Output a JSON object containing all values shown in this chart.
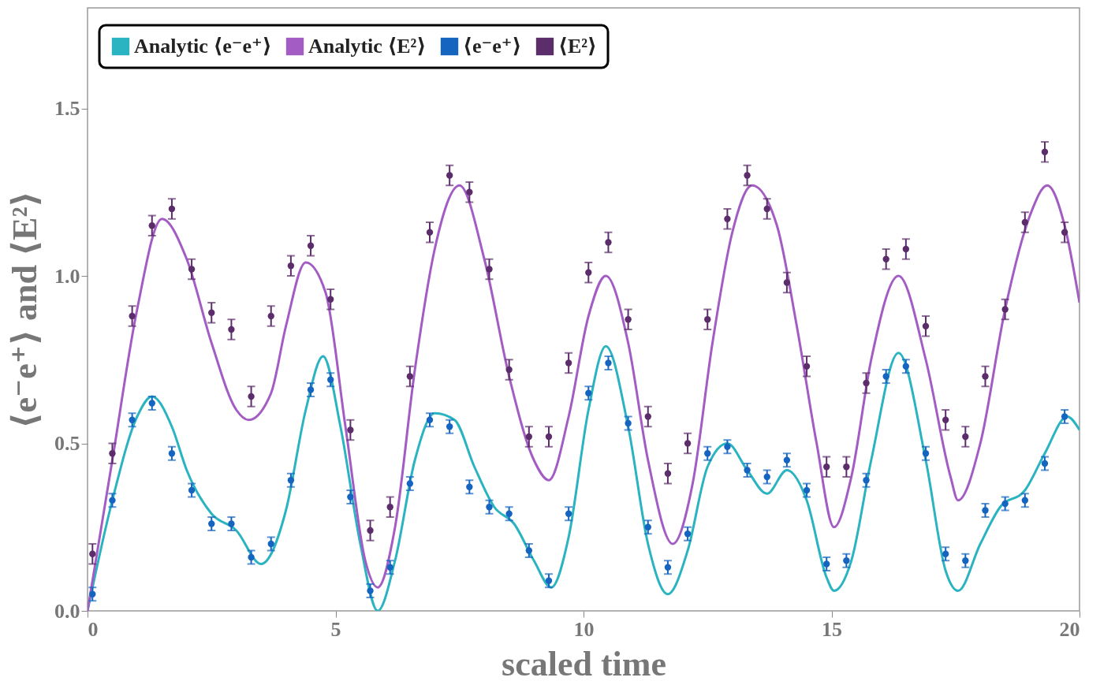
{
  "chart_data": {
    "type": "line",
    "xlabel": "scaled time",
    "ylabel": "⟨e⁻e⁺⟩ and ⟨E²⟩",
    "xlim": [
      0,
      20
    ],
    "ylim": [
      0,
      1.8
    ],
    "xticks": [
      0,
      5,
      10,
      15,
      20
    ],
    "yticks": [
      {
        "value": 0,
        "label": "0.0"
      },
      {
        "value": 0.5,
        "label": "0.5"
      },
      {
        "value": 1,
        "label": "1.0"
      },
      {
        "value": 1.5,
        "label": "1.5"
      }
    ],
    "grid": false,
    "legend": "top",
    "series": [
      {
        "name": "Analytic ⟨e⁻e⁺⟩",
        "color": "#2ab3c0",
        "x": [
          0,
          0.5,
          1.0,
          1.3,
          1.7,
          2.0,
          2.5,
          3.0,
          3.5,
          4.0,
          4.4,
          4.75,
          5.1,
          5.5,
          5.85,
          6.2,
          6.6,
          7.0,
          7.4,
          7.8,
          8.2,
          8.6,
          9.0,
          9.35,
          9.7,
          10.1,
          10.45,
          10.9,
          11.3,
          11.7,
          12.1,
          12.5,
          12.9,
          13.3,
          13.7,
          14.1,
          14.5,
          14.9,
          15.05,
          15.4,
          15.8,
          16.35,
          16.9,
          17.3,
          17.55,
          18.0,
          18.4,
          18.9,
          19.3,
          19.75,
          20
        ],
        "values": [
          0,
          0.33,
          0.58,
          0.64,
          0.55,
          0.42,
          0.29,
          0.24,
          0.14,
          0.3,
          0.6,
          0.76,
          0.55,
          0.2,
          0,
          0.15,
          0.45,
          0.59,
          0.57,
          0.43,
          0.31,
          0.26,
          0.15,
          0.07,
          0.22,
          0.6,
          0.79,
          0.55,
          0.2,
          0.05,
          0.18,
          0.43,
          0.5,
          0.42,
          0.35,
          0.42,
          0.33,
          0.1,
          0.06,
          0.15,
          0.45,
          0.77,
          0.45,
          0.12,
          0.06,
          0.2,
          0.31,
          0.36,
          0.47,
          0.58,
          0.54
        ]
      },
      {
        "name": "Analytic ⟨E²⟩",
        "color": "#a35cc4",
        "x": [
          0,
          0.5,
          1.0,
          1.5,
          2.0,
          2.5,
          3.0,
          3.25,
          3.7,
          4.0,
          4.4,
          4.8,
          5.2,
          5.6,
          5.85,
          6.2,
          6.6,
          7.0,
          7.5,
          8.0,
          8.5,
          9.0,
          9.3,
          9.7,
          10.1,
          10.45,
          10.9,
          11.3,
          11.8,
          12.2,
          12.6,
          13.0,
          13.4,
          13.9,
          14.3,
          14.7,
          15.05,
          15.4,
          15.8,
          16.35,
          16.9,
          17.4,
          17.55,
          18.0,
          18.5,
          19.0,
          19.35,
          19.7,
          20
        ],
        "values": [
          0,
          0.45,
          0.9,
          1.17,
          1.05,
          0.8,
          0.6,
          0.57,
          0.65,
          0.85,
          1.04,
          0.95,
          0.55,
          0.15,
          0.07,
          0.25,
          0.72,
          1.08,
          1.27,
          1.05,
          0.7,
          0.45,
          0.39,
          0.58,
          0.88,
          1.0,
          0.8,
          0.45,
          0.2,
          0.38,
          0.8,
          1.13,
          1.27,
          1.15,
          0.85,
          0.5,
          0.25,
          0.4,
          0.75,
          1.0,
          0.75,
          0.4,
          0.33,
          0.5,
          0.9,
          1.18,
          1.27,
          1.15,
          0.92
        ]
      },
      {
        "name": "⟨e⁻e⁺⟩",
        "type": "scatter",
        "marker": "circle",
        "color": "#1565c0",
        "x": [
          0.1,
          0.5,
          0.9,
          1.3,
          1.7,
          2.1,
          2.5,
          2.9,
          3.3,
          3.7,
          4.1,
          4.5,
          4.9,
          5.3,
          5.7,
          6.1,
          6.5,
          6.9,
          7.3,
          7.7,
          8.1,
          8.5,
          8.9,
          9.3,
          9.7,
          10.1,
          10.5,
          10.9,
          11.3,
          11.7,
          12.1,
          12.5,
          12.9,
          13.3,
          13.7,
          14.1,
          14.5,
          14.9,
          15.3,
          15.7,
          16.1,
          16.5,
          16.9,
          17.3,
          17.7,
          18.1,
          18.5,
          18.9,
          19.3,
          19.7
        ],
        "values": [
          0.05,
          0.33,
          0.57,
          0.62,
          0.47,
          0.36,
          0.26,
          0.26,
          0.16,
          0.2,
          0.39,
          0.66,
          0.69,
          0.34,
          0.06,
          0.13,
          0.38,
          0.57,
          0.55,
          0.37,
          0.31,
          0.29,
          0.18,
          0.09,
          0.29,
          0.65,
          0.74,
          0.56,
          0.25,
          0.13,
          0.23,
          0.47,
          0.49,
          0.42,
          0.4,
          0.45,
          0.36,
          0.14,
          0.15,
          0.39,
          0.7,
          0.73,
          0.47,
          0.17,
          0.15,
          0.3,
          0.32,
          0.33,
          0.44,
          0.58
        ],
        "errors": [
          0.02,
          0.02,
          0.02,
          0.02,
          0.02,
          0.02,
          0.02,
          0.02,
          0.02,
          0.02,
          0.02,
          0.02,
          0.02,
          0.02,
          0.02,
          0.02,
          0.02,
          0.02,
          0.02,
          0.02,
          0.02,
          0.02,
          0.02,
          0.02,
          0.02,
          0.02,
          0.02,
          0.02,
          0.02,
          0.02,
          0.02,
          0.02,
          0.02,
          0.02,
          0.02,
          0.02,
          0.02,
          0.02,
          0.02,
          0.02,
          0.02,
          0.02,
          0.02,
          0.02,
          0.02,
          0.02,
          0.02,
          0.02,
          0.02,
          0.02
        ]
      },
      {
        "name": "⟨E²⟩",
        "type": "scatter",
        "marker": "circle",
        "color": "#5c2d6b",
        "x": [
          0.1,
          0.5,
          0.9,
          1.3,
          1.7,
          2.1,
          2.5,
          2.9,
          3.3,
          3.7,
          4.1,
          4.5,
          4.9,
          5.3,
          5.7,
          6.1,
          6.5,
          6.9,
          7.3,
          7.7,
          8.1,
          8.5,
          8.9,
          9.3,
          9.7,
          10.1,
          10.5,
          10.9,
          11.3,
          11.7,
          12.1,
          12.5,
          12.9,
          13.3,
          13.7,
          14.1,
          14.5,
          14.9,
          15.3,
          15.7,
          16.1,
          16.5,
          16.9,
          17.3,
          17.7,
          18.1,
          18.5,
          18.9,
          19.3,
          19.7
        ],
        "values": [
          0.17,
          0.47,
          0.88,
          1.15,
          1.2,
          1.02,
          0.89,
          0.84,
          0.64,
          0.88,
          1.03,
          1.09,
          0.93,
          0.54,
          0.24,
          0.31,
          0.7,
          1.13,
          1.3,
          1.25,
          1.02,
          0.72,
          0.52,
          0.52,
          0.74,
          1.01,
          1.1,
          0.87,
          0.58,
          0.41,
          0.5,
          0.87,
          1.17,
          1.3,
          1.2,
          0.98,
          0.73,
          0.43,
          0.43,
          0.68,
          1.05,
          1.08,
          0.85,
          0.57,
          0.52,
          0.7,
          0.9,
          1.16,
          1.37,
          1.13
        ],
        "errors": [
          0.03,
          0.03,
          0.03,
          0.03,
          0.03,
          0.03,
          0.03,
          0.03,
          0.03,
          0.03,
          0.03,
          0.03,
          0.03,
          0.03,
          0.03,
          0.03,
          0.03,
          0.03,
          0.03,
          0.03,
          0.03,
          0.03,
          0.03,
          0.03,
          0.03,
          0.03,
          0.03,
          0.03,
          0.03,
          0.03,
          0.03,
          0.03,
          0.03,
          0.03,
          0.03,
          0.03,
          0.03,
          0.03,
          0.03,
          0.03,
          0.03,
          0.03,
          0.03,
          0.03,
          0.03,
          0.03,
          0.03,
          0.03,
          0.03,
          0.03
        ]
      }
    ]
  }
}
